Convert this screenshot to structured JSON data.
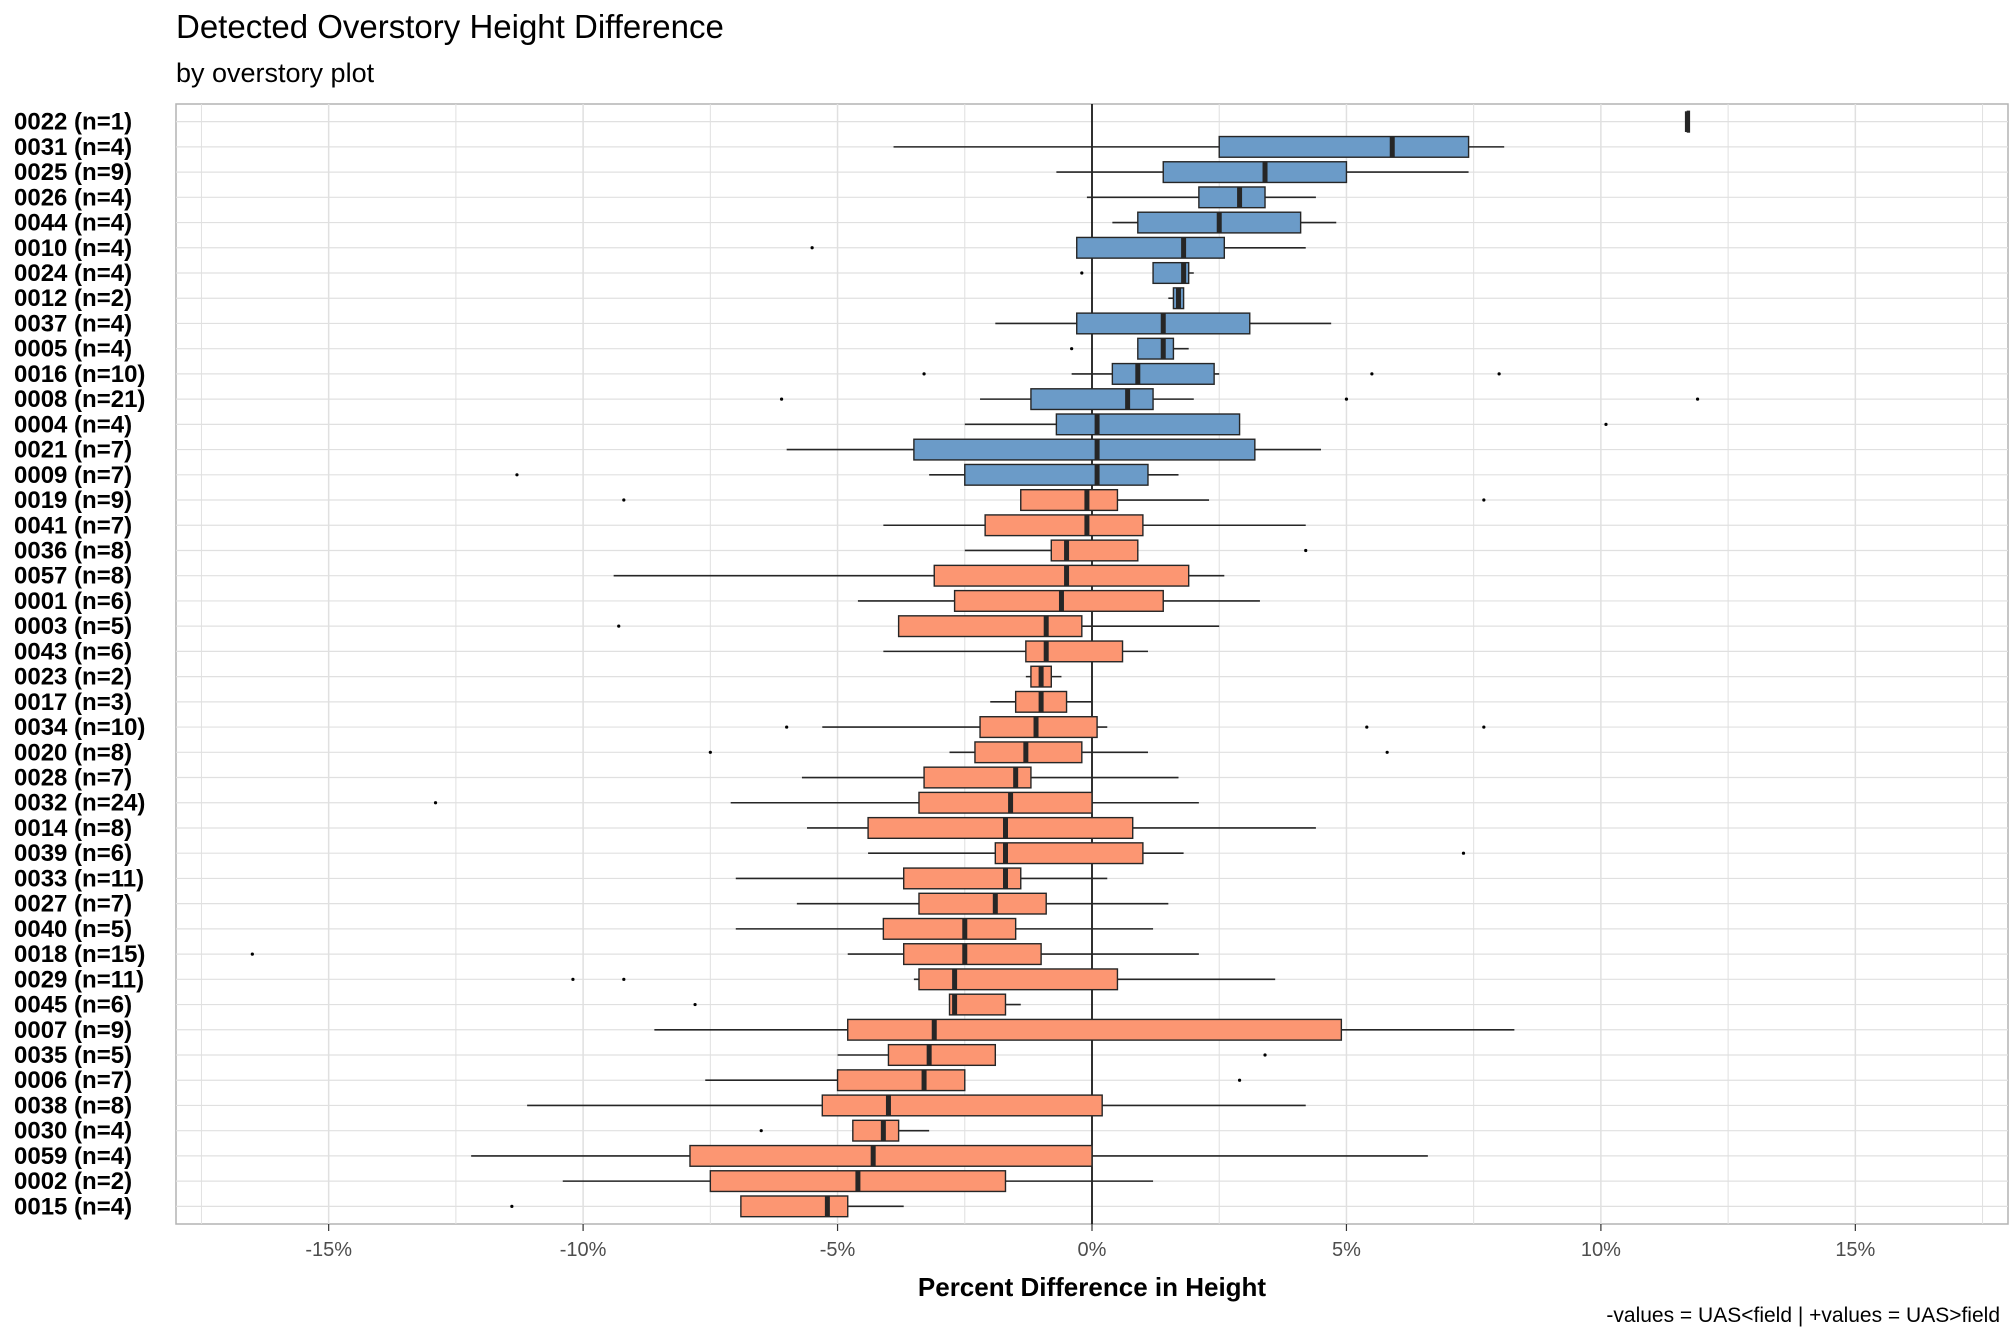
{
  "chart_data": {
    "type": "boxplot",
    "title": "Detected Overstory Height Difference",
    "subtitle": "by overstory plot",
    "xlabel": "Percent Difference in Height",
    "caption": "-values = UAS<field | +values = UAS>field",
    "xlim": [
      -18,
      18
    ],
    "x_ticks": [
      -15,
      -10,
      -5,
      0,
      5,
      10,
      15
    ],
    "x_tick_labels": [
      "-15%",
      "-10%",
      "-5%",
      "0%",
      "5%",
      "10%",
      "15%"
    ],
    "grid": true,
    "colors": {
      "positive": "#6b9bc8",
      "negative": "#fc9672",
      "outline": "#262626",
      "grid": "#e0e0e0"
    },
    "boxes": [
      {
        "label": "0022 (n=1)",
        "q1": 11.7,
        "median": 11.7,
        "q3": 11.7,
        "whisker_low": 11.7,
        "whisker_high": 11.7,
        "outliers": [],
        "fill": "positive"
      },
      {
        "label": "0031 (n=4)",
        "q1": 2.5,
        "median": 5.9,
        "q3": 7.4,
        "whisker_low": -3.9,
        "whisker_high": 8.1,
        "outliers": [],
        "fill": "positive"
      },
      {
        "label": "0025 (n=9)",
        "q1": 1.4,
        "median": 3.4,
        "q3": 5.0,
        "whisker_low": -0.7,
        "whisker_high": 7.4,
        "outliers": [],
        "fill": "positive"
      },
      {
        "label": "0026 (n=4)",
        "q1": 2.1,
        "median": 2.9,
        "q3": 3.4,
        "whisker_low": -0.1,
        "whisker_high": 4.4,
        "outliers": [],
        "fill": "positive"
      },
      {
        "label": "0044 (n=4)",
        "q1": 0.9,
        "median": 2.5,
        "q3": 4.1,
        "whisker_low": 0.4,
        "whisker_high": 4.8,
        "outliers": [],
        "fill": "positive"
      },
      {
        "label": "0010 (n=4)",
        "q1": -0.3,
        "median": 1.8,
        "q3": 2.6,
        "whisker_low": -0.3,
        "whisker_high": 4.2,
        "outliers": [
          -5.5
        ],
        "fill": "positive"
      },
      {
        "label": "0024 (n=4)",
        "q1": 1.2,
        "median": 1.8,
        "q3": 1.9,
        "whisker_low": 1.2,
        "whisker_high": 2.0,
        "outliers": [
          -0.2
        ],
        "fill": "positive"
      },
      {
        "label": "0012 (n=2)",
        "q1": 1.6,
        "median": 1.7,
        "q3": 1.8,
        "whisker_low": 1.5,
        "whisker_high": 1.8,
        "outliers": [],
        "fill": "positive"
      },
      {
        "label": "0037 (n=4)",
        "q1": -0.3,
        "median": 1.4,
        "q3": 3.1,
        "whisker_low": -1.9,
        "whisker_high": 4.7,
        "outliers": [],
        "fill": "positive"
      },
      {
        "label": "0005 (n=4)",
        "q1": 0.9,
        "median": 1.4,
        "q3": 1.6,
        "whisker_low": 0.9,
        "whisker_high": 1.9,
        "outliers": [
          -0.4
        ],
        "fill": "positive"
      },
      {
        "label": "0016 (n=10)",
        "q1": 0.4,
        "median": 0.9,
        "q3": 2.4,
        "whisker_low": -0.4,
        "whisker_high": 2.5,
        "outliers": [
          -3.3,
          5.5,
          8.0
        ],
        "fill": "positive"
      },
      {
        "label": "0008 (n=21)",
        "q1": -1.2,
        "median": 0.7,
        "q3": 1.2,
        "whisker_low": -2.2,
        "whisker_high": 2.0,
        "outliers": [
          -6.1,
          5.0,
          11.9
        ],
        "fill": "positive"
      },
      {
        "label": "0004 (n=4)",
        "q1": -0.7,
        "median": 0.1,
        "q3": 2.9,
        "whisker_low": -2.5,
        "whisker_high": 2.9,
        "outliers": [
          10.1
        ],
        "fill": "positive"
      },
      {
        "label": "0021 (n=7)",
        "q1": -3.5,
        "median": 0.1,
        "q3": 3.2,
        "whisker_low": -6.0,
        "whisker_high": 4.5,
        "outliers": [],
        "fill": "positive"
      },
      {
        "label": "0009 (n=7)",
        "q1": -2.5,
        "median": 0.1,
        "q3": 1.1,
        "whisker_low": -3.2,
        "whisker_high": 1.7,
        "outliers": [
          -11.3
        ],
        "fill": "positive"
      },
      {
        "label": "0019 (n=9)",
        "q1": -1.4,
        "median": -0.1,
        "q3": 0.5,
        "whisker_low": -1.4,
        "whisker_high": 2.3,
        "outliers": [
          -9.2,
          7.7
        ],
        "fill": "negative"
      },
      {
        "label": "0041 (n=7)",
        "q1": -2.1,
        "median": -0.1,
        "q3": 1.0,
        "whisker_low": -4.1,
        "whisker_high": 4.2,
        "outliers": [],
        "fill": "negative"
      },
      {
        "label": "0036 (n=8)",
        "q1": -0.8,
        "median": -0.5,
        "q3": 0.9,
        "whisker_low": -2.5,
        "whisker_high": 0.9,
        "outliers": [
          4.2
        ],
        "fill": "negative"
      },
      {
        "label": "0057 (n=8)",
        "q1": -3.1,
        "median": -0.5,
        "q3": 1.9,
        "whisker_low": -9.4,
        "whisker_high": 2.6,
        "outliers": [],
        "fill": "negative"
      },
      {
        "label": "0001 (n=6)",
        "q1": -2.7,
        "median": -0.6,
        "q3": 1.4,
        "whisker_low": -4.6,
        "whisker_high": 3.3,
        "outliers": [],
        "fill": "negative"
      },
      {
        "label": "0003 (n=5)",
        "q1": -3.8,
        "median": -0.9,
        "q3": -0.2,
        "whisker_low": -3.8,
        "whisker_high": 2.5,
        "outliers": [
          -9.3
        ],
        "fill": "negative"
      },
      {
        "label": "0043 (n=6)",
        "q1": -1.3,
        "median": -0.9,
        "q3": 0.6,
        "whisker_low": -4.1,
        "whisker_high": 1.1,
        "outliers": [],
        "fill": "negative"
      },
      {
        "label": "0023 (n=2)",
        "q1": -1.2,
        "median": -1.0,
        "q3": -0.8,
        "whisker_low": -1.3,
        "whisker_high": -0.6,
        "outliers": [],
        "fill": "negative"
      },
      {
        "label": "0017 (n=3)",
        "q1": -1.5,
        "median": -1.0,
        "q3": -0.5,
        "whisker_low": -2.0,
        "whisker_high": 0.0,
        "outliers": [],
        "fill": "negative"
      },
      {
        "label": "0034 (n=10)",
        "q1": -2.2,
        "median": -1.1,
        "q3": 0.1,
        "whisker_low": -5.3,
        "whisker_high": 0.3,
        "outliers": [
          -6.0,
          5.4,
          7.7
        ],
        "fill": "negative"
      },
      {
        "label": "0020 (n=8)",
        "q1": -2.3,
        "median": -1.3,
        "q3": -0.2,
        "whisker_low": -2.8,
        "whisker_high": 1.1,
        "outliers": [
          -7.5,
          5.8
        ],
        "fill": "negative"
      },
      {
        "label": "0028 (n=7)",
        "q1": -3.3,
        "median": -1.5,
        "q3": -1.2,
        "whisker_low": -5.7,
        "whisker_high": 1.7,
        "outliers": [],
        "fill": "negative"
      },
      {
        "label": "0032 (n=24)",
        "q1": -3.4,
        "median": -1.6,
        "q3": 0.0,
        "whisker_low": -7.1,
        "whisker_high": 2.1,
        "outliers": [
          -12.9
        ],
        "fill": "negative"
      },
      {
        "label": "0014 (n=8)",
        "q1": -4.4,
        "median": -1.7,
        "q3": 0.8,
        "whisker_low": -5.6,
        "whisker_high": 4.4,
        "outliers": [],
        "fill": "negative"
      },
      {
        "label": "0039 (n=6)",
        "q1": -1.9,
        "median": -1.7,
        "q3": 1.0,
        "whisker_low": -4.4,
        "whisker_high": 1.8,
        "outliers": [
          7.3
        ],
        "fill": "negative"
      },
      {
        "label": "0033 (n=11)",
        "q1": -3.7,
        "median": -1.7,
        "q3": -1.4,
        "whisker_low": -7.0,
        "whisker_high": 0.3,
        "outliers": [],
        "fill": "negative"
      },
      {
        "label": "0027 (n=7)",
        "q1": -3.4,
        "median": -1.9,
        "q3": -0.9,
        "whisker_low": -5.8,
        "whisker_high": 1.5,
        "outliers": [],
        "fill": "negative"
      },
      {
        "label": "0040 (n=5)",
        "q1": -4.1,
        "median": -2.5,
        "q3": -1.5,
        "whisker_low": -7.0,
        "whisker_high": 1.2,
        "outliers": [],
        "fill": "negative"
      },
      {
        "label": "0018 (n=15)",
        "q1": -3.7,
        "median": -2.5,
        "q3": -1.0,
        "whisker_low": -4.8,
        "whisker_high": 2.1,
        "outliers": [
          -16.5
        ],
        "fill": "negative"
      },
      {
        "label": "0029 (n=11)",
        "q1": -3.4,
        "median": -2.7,
        "q3": 0.5,
        "whisker_low": -3.5,
        "whisker_high": 3.6,
        "outliers": [
          -10.2,
          -9.2
        ],
        "fill": "negative"
      },
      {
        "label": "0045 (n=6)",
        "q1": -2.8,
        "median": -2.7,
        "q3": -1.7,
        "whisker_low": -2.8,
        "whisker_high": -1.4,
        "outliers": [
          -7.8
        ],
        "fill": "negative"
      },
      {
        "label": "0007 (n=9)",
        "q1": -4.8,
        "median": -3.1,
        "q3": 4.9,
        "whisker_low": -8.6,
        "whisker_high": 8.3,
        "outliers": [],
        "fill": "negative"
      },
      {
        "label": "0035 (n=5)",
        "q1": -4.0,
        "median": -3.2,
        "q3": -1.9,
        "whisker_low": -5.0,
        "whisker_high": -1.9,
        "outliers": [
          3.4
        ],
        "fill": "negative"
      },
      {
        "label": "0006 (n=7)",
        "q1": -5.0,
        "median": -3.3,
        "q3": -2.5,
        "whisker_low": -7.6,
        "whisker_high": -2.5,
        "outliers": [
          2.9
        ],
        "fill": "negative"
      },
      {
        "label": "0038 (n=8)",
        "q1": -5.3,
        "median": -4.0,
        "q3": 0.2,
        "whisker_low": -11.1,
        "whisker_high": 4.2,
        "outliers": [],
        "fill": "negative"
      },
      {
        "label": "0030 (n=4)",
        "q1": -4.7,
        "median": -4.1,
        "q3": -3.8,
        "whisker_low": -4.7,
        "whisker_high": -3.2,
        "outliers": [
          -6.5
        ],
        "fill": "negative"
      },
      {
        "label": "0059 (n=4)",
        "q1": -7.9,
        "median": -4.3,
        "q3": 0.0,
        "whisker_low": -12.2,
        "whisker_high": 6.6,
        "outliers": [],
        "fill": "negative"
      },
      {
        "label": "0002 (n=2)",
        "q1": -7.5,
        "median": -4.6,
        "q3": -1.7,
        "whisker_low": -10.4,
        "whisker_high": 1.2,
        "outliers": [],
        "fill": "negative"
      },
      {
        "label": "0015 (n=4)",
        "q1": -6.9,
        "median": -5.2,
        "q3": -4.8,
        "whisker_low": -6.9,
        "whisker_high": -3.7,
        "outliers": [
          -11.4
        ],
        "fill": "negative"
      }
    ]
  }
}
